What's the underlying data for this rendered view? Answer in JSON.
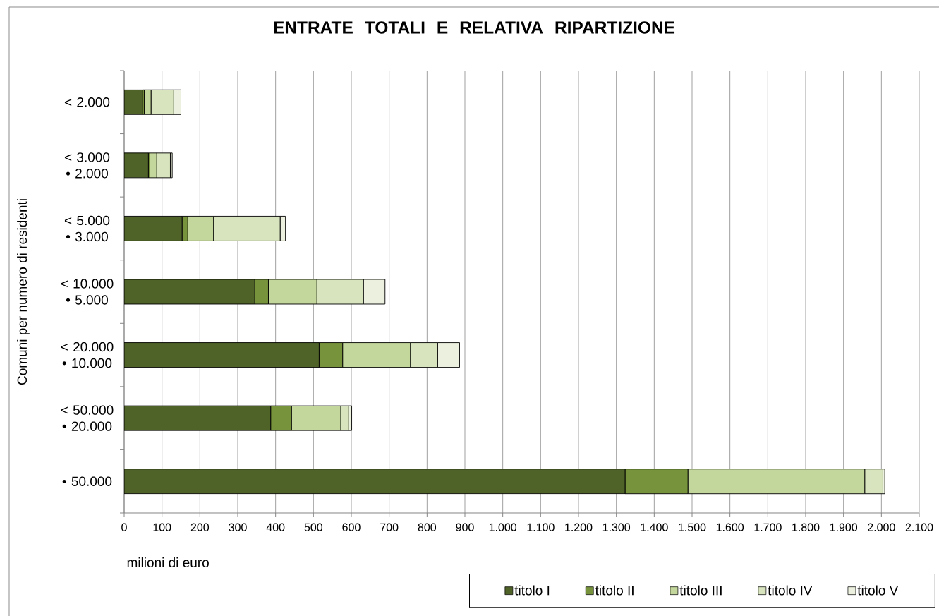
{
  "chart_data": {
    "type": "bar",
    "orientation": "horizontal",
    "stacked": true,
    "title": "ENTRATE TOTALI E RELATIVA RIPARTIZIONE",
    "xlabel": "milioni di euro",
    "ylabel": "Comuni per numero di residenti",
    "categories": [
      "< 2.000",
      "< 3.000\n• 2.000",
      "< 5.000\n• 3.000",
      "< 10.000\n• 5.000",
      "< 20.000\n• 10.000",
      "< 50.000\n• 20.000",
      "• 50.000"
    ],
    "series": [
      {
        "name": "titolo I",
        "color": "#4f6228",
        "values": [
          49,
          64,
          153,
          345,
          515,
          387,
          1323
        ]
      },
      {
        "name": "titolo II",
        "color": "#77933c",
        "values": [
          4,
          4,
          15,
          36,
          62,
          55,
          166
        ]
      },
      {
        "name": "titolo III",
        "color": "#c3d69b",
        "values": [
          18,
          18,
          68,
          128,
          179,
          130,
          467
        ]
      },
      {
        "name": "titolo IV",
        "color": "#d7e4bd",
        "values": [
          60,
          36,
          176,
          123,
          72,
          21,
          48
        ]
      },
      {
        "name": "titolo V",
        "color": "#ebf1de",
        "values": [
          19,
          5,
          14,
          57,
          58,
          8,
          5
        ]
      }
    ],
    "xlim": [
      0,
      2100
    ],
    "xticks": [
      0,
      100,
      200,
      300,
      400,
      500,
      600,
      700,
      800,
      900,
      {
        "value": 1000,
        "label": "1.000"
      },
      {
        "value": 1100,
        "label": "1.100"
      },
      {
        "value": 1200,
        "label": "1.200"
      },
      {
        "value": 1300,
        "label": "1.300"
      },
      {
        "value": 1400,
        "label": "1.400"
      },
      {
        "value": 1500,
        "label": "1.500"
      },
      {
        "value": 1600,
        "label": "1.600"
      },
      {
        "value": 1700,
        "label": "1.700"
      },
      {
        "value": 1800,
        "label": "1.800"
      },
      {
        "value": 1900,
        "label": "1.900"
      },
      {
        "value": 2000,
        "label": "2.000"
      },
      {
        "value": 2100,
        "label": "2.100"
      }
    ],
    "grid": "x",
    "legend": "bottom right"
  }
}
